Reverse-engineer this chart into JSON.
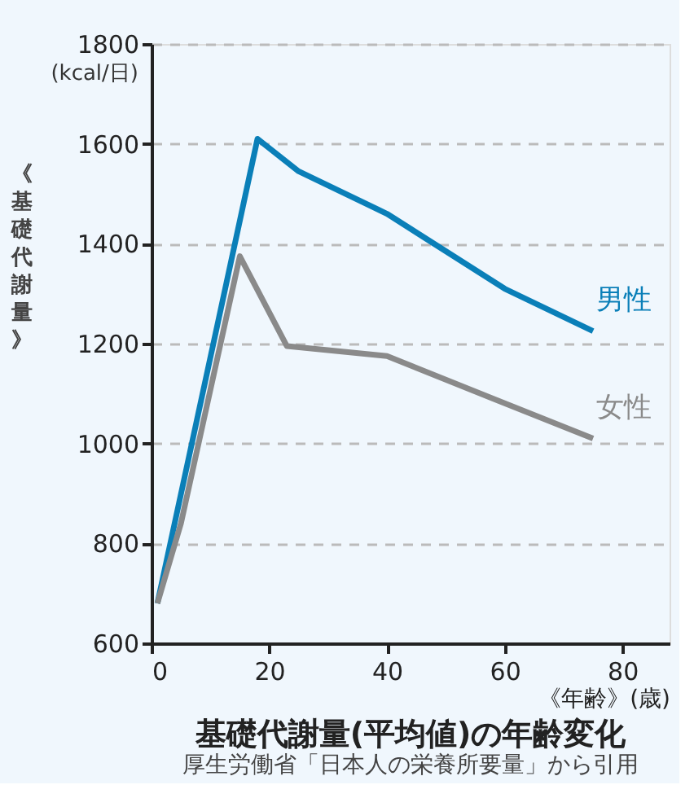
{
  "chart_data": {
    "type": "line",
    "title": "基礎代謝量(平均値)の年齢変化",
    "xlabel": "《年齢》(歳)",
    "ylabel": "《基礎代謝量》",
    "annotations": [
      "(kcal/日)",
      "厚生労働省「日本人の栄養所要量」から引用"
    ],
    "series": [
      {
        "name": "男性",
        "color": "#0a7fb8",
        "x": [
          1,
          18,
          25,
          40,
          60,
          75
        ],
        "values": [
          680,
          1610,
          1545,
          1460,
          1310,
          1225
        ]
      },
      {
        "name": "女性",
        "color": "#8a8a8a",
        "x": [
          1,
          5,
          15,
          23,
          40,
          58,
          75
        ],
        "values": [
          680,
          840,
          1375,
          1195,
          1175,
          1090,
          1010
        ]
      }
    ],
    "xlim": [
      0,
      88
    ],
    "xticks": [
      0,
      20,
      40,
      60,
      80
    ],
    "ylim": [
      600,
      1800
    ],
    "yticks": [
      600,
      800,
      1000,
      1200,
      1400,
      1600,
      1800
    ],
    "grid": "y",
    "legend": false,
    "marker": "none",
    "line_style": "solid"
  }
}
